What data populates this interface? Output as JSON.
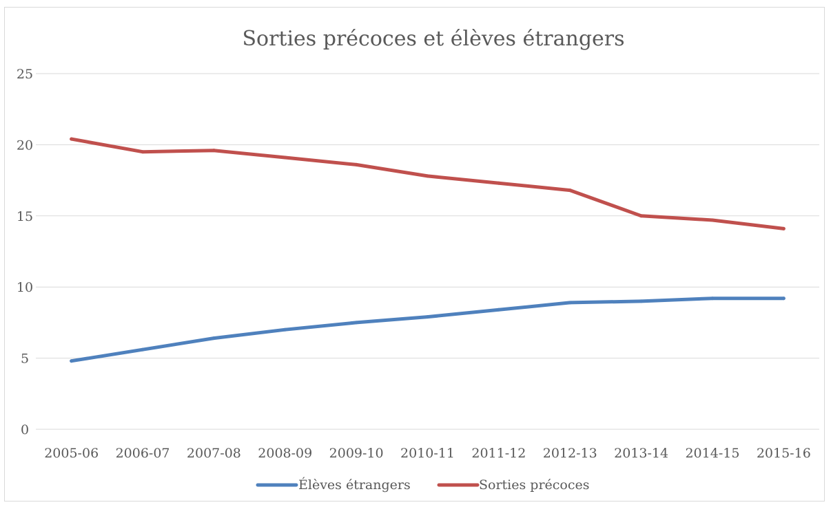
{
  "chart_data": {
    "type": "line",
    "title": "Sorties précoces et élèves étrangers",
    "xlabel": "",
    "ylabel": "",
    "categories": [
      "2005-06",
      "2006-07",
      "2007-08",
      "2008-09",
      "2009-10",
      "2010-11",
      "2011-12",
      "2012-13",
      "2013-14",
      "2014-15",
      "2015-16"
    ],
    "ylim": [
      0,
      25
    ],
    "yticks": [
      "0",
      "5",
      "10",
      "15",
      "20",
      "25"
    ],
    "grid": true,
    "legend_position": "bottom",
    "series": [
      {
        "name": "Élèves étrangers",
        "color": "#4f81bd",
        "values": [
          4.8,
          5.6,
          6.4,
          7.0,
          7.5,
          7.9,
          8.4,
          8.9,
          9.0,
          9.2,
          9.2
        ]
      },
      {
        "name": "Sorties précoces",
        "color": "#c0504d",
        "values": [
          20.4,
          19.5,
          19.6,
          19.1,
          18.6,
          17.8,
          17.3,
          16.8,
          15.0,
          14.7,
          14.1
        ]
      }
    ]
  }
}
